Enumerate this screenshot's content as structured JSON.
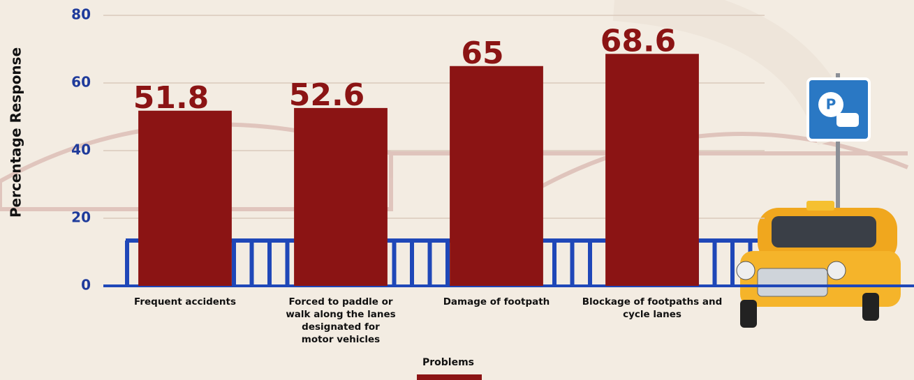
{
  "chart_data": {
    "type": "bar",
    "y_label": "Percentage Response",
    "x_label": "Problems",
    "categories": [
      "Frequent accidents",
      "Forced to paddle or walk along the lanes designated for motor vehicles",
      "Damage of footpath",
      "Blockage of footpaths and cycle lanes"
    ],
    "values": [
      51.8,
      52.6,
      65,
      68.6
    ],
    "color": "#8b1414",
    "ylim": [
      0,
      80
    ],
    "yticks": [
      0,
      20,
      40,
      60,
      80
    ],
    "grid": true
  }
}
